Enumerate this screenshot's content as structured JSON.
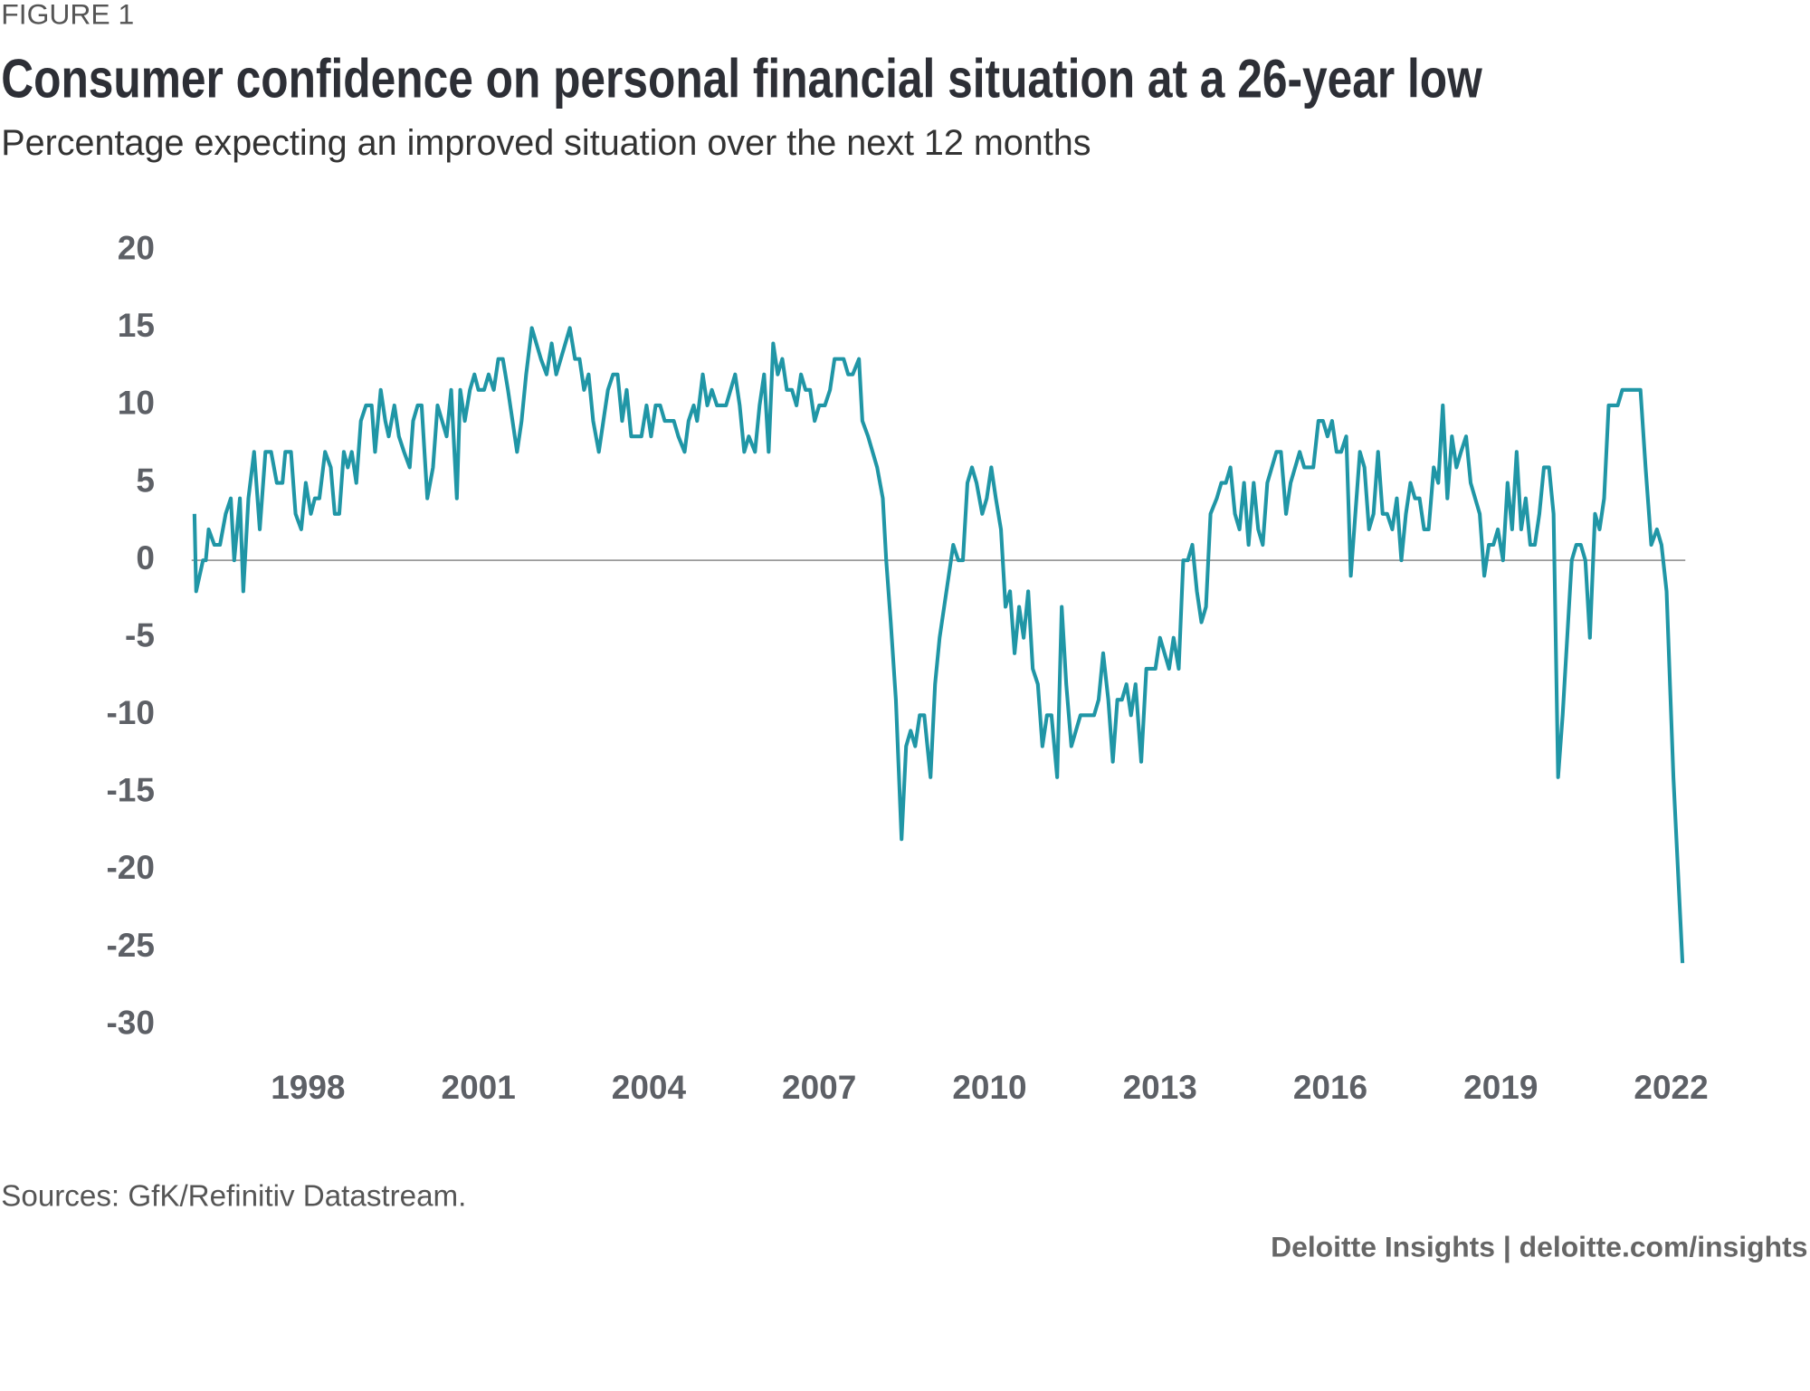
{
  "chart_data": {
    "type": "line",
    "figure_label": "FIGURE 1",
    "title": "Consumer confidence on personal financial situation at a 26-year low",
    "subtitle": "Percentage expecting an improved situation over the next 12 months",
    "source": "Sources: GfK/Refinitiv Datastream.",
    "credit": "Deloitte Insights | deloitte.com/insights",
    "color": "#2096a6",
    "xlim": [
      1995.95,
      2022.25
    ],
    "xticks": [
      1998,
      2001,
      2004,
      2007,
      2010,
      2013,
      2016,
      2019,
      2022
    ],
    "ylim": [
      -30,
      20
    ],
    "yticks": [
      -30,
      -25,
      -20,
      -15,
      -10,
      -5,
      0,
      5,
      10,
      15,
      20
    ],
    "x": [
      1996.0,
      1996.03,
      1996.15,
      1996.2,
      1996.25,
      1996.35,
      1996.45,
      1996.55,
      1996.64,
      1996.7,
      1996.8,
      1996.86,
      1996.95,
      1997.05,
      1997.15,
      1997.25,
      1997.35,
      1997.45,
      1997.55,
      1997.6,
      1997.7,
      1997.78,
      1997.88,
      1997.96,
      1998.05,
      1998.12,
      1998.2,
      1998.3,
      1998.4,
      1998.47,
      1998.55,
      1998.63,
      1998.7,
      1998.77,
      1998.85,
      1998.93,
      1999.02,
      1999.12,
      1999.18,
      1999.28,
      1999.36,
      1999.42,
      1999.52,
      1999.6,
      1999.69,
      1999.79,
      1999.85,
      1999.93,
      2000.0,
      2000.1,
      2000.2,
      2000.28,
      2000.36,
      2000.44,
      2000.52,
      2000.62,
      2000.68,
      2000.76,
      2000.85,
      2000.93,
      2001.0,
      2001.1,
      2001.18,
      2001.27,
      2001.35,
      2001.43,
      2001.52,
      2001.6,
      2001.68,
      2001.76,
      2001.84,
      2001.94,
      2002.02,
      2002.1,
      2002.2,
      2002.29,
      2002.37,
      2002.45,
      2002.53,
      2002.61,
      2002.7,
      2002.78,
      2002.86,
      2002.94,
      2003.02,
      2003.12,
      2003.2,
      2003.28,
      2003.37,
      2003.45,
      2003.53,
      2003.61,
      2003.69,
      2003.77,
      2003.87,
      2003.96,
      2004.04,
      2004.12,
      2004.2,
      2004.28,
      2004.36,
      2004.44,
      2004.52,
      2004.63,
      2004.7,
      2004.79,
      2004.85,
      2004.95,
      2005.03,
      2005.11,
      2005.2,
      2005.28,
      2005.36,
      2005.44,
      2005.52,
      2005.6,
      2005.68,
      2005.76,
      2005.87,
      2005.95,
      2006.03,
      2006.11,
      2006.19,
      2006.27,
      2006.35,
      2006.43,
      2006.52,
      2006.6,
      2006.68,
      2006.76,
      2006.84,
      2006.92,
      2007.0,
      2007.1,
      2007.19,
      2007.27,
      2007.35,
      2007.43,
      2007.51,
      2007.59,
      2007.7,
      2007.76,
      2007.86,
      2007.94,
      2008.02,
      2008.12,
      2008.18,
      2008.26,
      2008.35,
      2008.45,
      2008.53,
      2008.61,
      2008.69,
      2008.77,
      2008.85,
      2008.96,
      2009.04,
      2009.12,
      2009.2,
      2009.28,
      2009.36,
      2009.45,
      2009.53,
      2009.61,
      2009.69,
      2009.77,
      2009.87,
      2009.95,
      2010.03,
      2010.11,
      2010.2,
      2010.28,
      2010.36,
      2010.44,
      2010.52,
      2010.6,
      2010.68,
      2010.76,
      2010.85,
      2010.93,
      2011.01,
      2011.09,
      2011.19,
      2011.27,
      2011.35,
      2011.44,
      2011.52,
      2011.6,
      2011.68,
      2011.76,
      2011.84,
      2011.92,
      2012.0,
      2012.09,
      2012.17,
      2012.25,
      2012.33,
      2012.41,
      2012.49,
      2012.57,
      2012.67,
      2012.76,
      2012.84,
      2012.92,
      2013.0,
      2013.08,
      2013.16,
      2013.24,
      2013.33,
      2013.41,
      2013.49,
      2013.57,
      2013.65,
      2013.73,
      2013.81,
      2013.89,
      2014.0,
      2014.08,
      2014.16,
      2014.24,
      2014.32,
      2014.4,
      2014.48,
      2014.56,
      2014.65,
      2014.73,
      2014.81,
      2014.89,
      2014.97,
      2015.05,
      2015.13,
      2015.22,
      2015.3,
      2015.38,
      2015.46,
      2015.54,
      2015.62,
      2015.7,
      2015.79,
      2015.87,
      2015.95,
      2016.03,
      2016.11,
      2016.19,
      2016.28,
      2016.36,
      2016.44,
      2016.52,
      2016.6,
      2016.68,
      2016.76,
      2016.84,
      2016.92,
      2017.0,
      2017.09,
      2017.17,
      2017.25,
      2017.33,
      2017.41,
      2017.49,
      2017.57,
      2017.65,
      2017.73,
      2017.82,
      2017.9,
      2017.98,
      2018.06,
      2018.14,
      2018.22,
      2018.3,
      2018.39,
      2018.47,
      2018.55,
      2018.63,
      2018.71,
      2018.79,
      2018.87,
      2018.95,
      2019.04,
      2019.12,
      2019.2,
      2019.28,
      2019.36,
      2019.44,
      2019.52,
      2019.6,
      2019.68,
      2019.76,
      2019.85,
      2019.93,
      2020.01,
      2020.09,
      2020.17,
      2020.25,
      2020.33,
      2020.41,
      2020.49,
      2020.57,
      2020.66,
      2020.74,
      2020.82,
      2020.9,
      2020.98,
      2021.06,
      2021.14,
      2021.22,
      2021.3,
      2021.38,
      2021.46,
      2021.55,
      2021.65,
      2021.75,
      2021.83,
      2021.92,
      2022.04,
      2022.2
    ],
    "values": [
      3,
      -2,
      0,
      0,
      2,
      1,
      1,
      3,
      4,
      0,
      4,
      -2,
      4,
      7,
      2,
      7,
      7,
      5,
      5,
      7,
      7,
      3,
      2,
      5,
      3,
      4,
      4,
      7,
      6,
      3,
      3,
      7,
      6,
      7,
      5,
      9,
      10,
      10,
      7,
      11,
      9,
      8,
      10,
      8,
      7,
      6,
      9,
      10,
      10,
      4,
      6,
      10,
      9,
      8,
      11,
      4,
      11,
      9,
      11,
      12,
      11,
      11,
      12,
      11,
      13,
      13,
      11,
      9,
      7,
      9,
      12,
      15,
      14,
      13,
      12,
      14,
      12,
      13,
      14,
      15,
      13,
      13,
      11,
      12,
      9,
      7,
      9,
      11,
      12,
      12,
      9,
      11,
      8,
      8,
      8,
      10,
      8,
      10,
      10,
      9,
      9,
      9,
      8,
      7,
      9,
      10,
      9,
      12,
      10,
      11,
      10,
      10,
      10,
      11,
      12,
      10,
      7,
      8,
      7,
      10,
      12,
      7,
      14,
      12,
      13,
      11,
      11,
      10,
      12,
      11,
      11,
      9,
      10,
      10,
      11,
      13,
      13,
      13,
      12,
      12,
      13,
      9,
      8,
      7,
      6,
      4,
      0,
      -4,
      -9,
      -18,
      -12,
      -11,
      -12,
      -10,
      -10,
      -14,
      -8,
      -5,
      -3,
      -1,
      1,
      0,
      0,
      5,
      6,
      5,
      3,
      4,
      6,
      4,
      2,
      -3,
      -2,
      -6,
      -3,
      -5,
      -2,
      -7,
      -8,
      -12,
      -10,
      -10,
      -14,
      -3,
      -8,
      -12,
      -11,
      -10,
      -10,
      -10,
      -10,
      -9,
      -6,
      -9,
      -13,
      -9,
      -9,
      -8,
      -10,
      -8,
      -13,
      -7,
      -7,
      -7,
      -5,
      -6,
      -7,
      -5,
      -7,
      0,
      0,
      1,
      -2,
      -4,
      -3,
      3,
      4,
      5,
      5,
      6,
      3,
      2,
      5,
      1,
      5,
      2,
      1,
      5,
      6,
      7,
      7,
      3,
      5,
      6,
      7,
      6,
      6,
      6,
      9,
      9,
      8,
      9,
      7,
      7,
      8,
      -1,
      3,
      7,
      6,
      2,
      3,
      7,
      3,
      3,
      2,
      4,
      0,
      3,
      5,
      4,
      4,
      2,
      2,
      6,
      5,
      10,
      4,
      8,
      6,
      7,
      8,
      5,
      4,
      3,
      -1,
      1,
      1,
      2,
      0,
      5,
      2,
      7,
      2,
      4,
      1,
      1,
      3,
      6,
      6,
      3,
      -14,
      -10,
      -5,
      0,
      1,
      1,
      0,
      -5,
      3,
      2,
      4,
      10,
      10,
      10,
      11,
      11,
      11,
      11,
      11,
      6,
      1,
      2,
      1,
      -2,
      -14,
      -26
    ]
  }
}
